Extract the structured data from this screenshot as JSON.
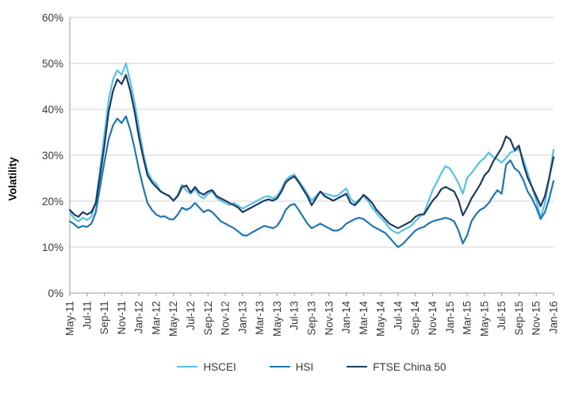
{
  "chart_data": {
    "type": "line",
    "title": "",
    "xlabel": "",
    "ylabel": "Volatility",
    "ylim": [
      0,
      60
    ],
    "y_tick_labels": [
      "0%",
      "10%",
      "20%",
      "30%",
      "40%",
      "50%",
      "60%"
    ],
    "y_tick_values": [
      0,
      10,
      20,
      30,
      40,
      50,
      60
    ],
    "grid": "horizontal",
    "legend_position": "bottom-center",
    "x_unit": "months since May-2011 (values sampled every 0.5 month)",
    "x_start": 0,
    "x_step": 0.5,
    "x_end": 56,
    "x_tick_step_months": 2,
    "x_tick_labels": [
      "May-11",
      "Jul-11",
      "Sep-11",
      "Nov-11",
      "Jan-12",
      "Mar-12",
      "May-12",
      "Jul-12",
      "Sep-12",
      "Nov-12",
      "Jan-13",
      "Mar-13",
      "May-13",
      "Jul-13",
      "Sep-13",
      "Nov-13",
      "Jan-14",
      "Mar-14",
      "May-14",
      "Jul-14",
      "Sep-14",
      "Nov-14",
      "Jan-15",
      "Mar-15",
      "May-15",
      "Jul-15",
      "Sep-15",
      "Nov-15",
      "Jan-16"
    ],
    "series": [
      {
        "name": "HSCEI",
        "color": "#58BFE8",
        "values": [
          17.5,
          16.3,
          15.6,
          16.4,
          15.9,
          16.6,
          19.5,
          27.0,
          34.5,
          42.0,
          46.5,
          48.5,
          47.5,
          50.0,
          46.0,
          41.5,
          36.0,
          30.5,
          26.5,
          24.6,
          23.8,
          22.2,
          21.6,
          21.2,
          20.1,
          21.4,
          23.6,
          22.3,
          21.6,
          22.6,
          21.2,
          20.6,
          21.6,
          22.1,
          20.7,
          20.1,
          19.6,
          19.1,
          19.6,
          19.0,
          18.4,
          18.9,
          19.4,
          19.9,
          20.4,
          20.9,
          21.1,
          20.6,
          21.1,
          22.6,
          24.6,
          25.4,
          25.8,
          24.4,
          23.1,
          21.6,
          20.1,
          21.1,
          22.1,
          21.6,
          21.4,
          21.1,
          21.2,
          22.0,
          22.8,
          20.6,
          19.6,
          20.4,
          21.1,
          20.1,
          18.6,
          17.4,
          16.4,
          15.4,
          14.1,
          13.4,
          13.0,
          13.6,
          14.1,
          14.6,
          15.6,
          16.6,
          17.4,
          19.9,
          22.4,
          24.1,
          26.1,
          27.6,
          27.1,
          25.6,
          23.9,
          21.6,
          25.1,
          26.1,
          27.4,
          28.6,
          29.4,
          30.6,
          29.6,
          29.1,
          28.4,
          29.4,
          30.6,
          30.9,
          31.4,
          29.1,
          26.1,
          23.1,
          20.1,
          16.4,
          19.6,
          25.1,
          31.2
        ]
      },
      {
        "name": "HSI",
        "color": "#1E76B4",
        "values": [
          15.6,
          15.0,
          14.2,
          14.6,
          14.4,
          15.1,
          17.5,
          23.0,
          28.5,
          33.5,
          36.5,
          38.0,
          37.0,
          38.5,
          35.5,
          31.5,
          27.0,
          23.0,
          19.6,
          18.1,
          17.1,
          16.6,
          16.7,
          16.1,
          16.0,
          17.1,
          18.6,
          18.1,
          18.6,
          19.6,
          18.6,
          17.6,
          18.1,
          17.6,
          16.6,
          15.6,
          15.1,
          14.6,
          14.1,
          13.4,
          12.6,
          12.5,
          13.1,
          13.6,
          14.1,
          14.6,
          14.4,
          14.1,
          14.6,
          16.1,
          18.1,
          19.1,
          19.4,
          18.1,
          16.6,
          15.1,
          14.1,
          14.6,
          15.1,
          14.6,
          14.1,
          13.6,
          13.6,
          14.1,
          15.1,
          15.6,
          16.1,
          16.4,
          16.1,
          15.4,
          14.6,
          14.1,
          13.6,
          13.1,
          12.1,
          11.0,
          10.0,
          10.6,
          11.6,
          12.6,
          13.6,
          14.1,
          14.4,
          15.1,
          15.6,
          15.9,
          16.1,
          16.4,
          16.1,
          15.6,
          13.6,
          10.8,
          12.6,
          15.6,
          17.1,
          18.1,
          18.6,
          19.6,
          21.1,
          22.4,
          21.6,
          27.9,
          28.9,
          27.1,
          26.4,
          24.6,
          22.1,
          20.6,
          18.6,
          16.1,
          17.6,
          20.6,
          24.4
        ]
      },
      {
        "name": "FTSE China 50",
        "color": "#1E3A5F",
        "values": [
          18.1,
          17.1,
          16.6,
          17.6,
          17.1,
          17.6,
          19.6,
          25.5,
          32.0,
          39.5,
          44.0,
          46.5,
          45.5,
          47.5,
          44.0,
          39.5,
          34.0,
          29.5,
          25.6,
          24.1,
          23.1,
          22.1,
          21.6,
          21.1,
          20.1,
          21.1,
          23.1,
          23.4,
          21.9,
          23.1,
          21.9,
          21.4,
          22.1,
          22.4,
          21.1,
          20.6,
          20.1,
          19.6,
          19.1,
          18.6,
          17.6,
          18.1,
          18.6,
          19.1,
          19.6,
          20.1,
          20.4,
          20.1,
          20.6,
          22.1,
          24.1,
          24.9,
          25.4,
          24.1,
          22.6,
          21.1,
          19.1,
          20.6,
          22.1,
          21.1,
          20.6,
          20.1,
          20.6,
          21.1,
          21.6,
          19.6,
          19.1,
          20.1,
          21.4,
          20.6,
          19.6,
          18.1,
          17.1,
          16.1,
          15.1,
          14.6,
          14.1,
          14.6,
          15.1,
          15.6,
          16.6,
          17.1,
          17.1,
          18.6,
          20.1,
          21.1,
          22.6,
          23.1,
          22.6,
          22.1,
          20.1,
          16.9,
          18.6,
          20.6,
          22.1,
          23.6,
          25.6,
          26.6,
          28.6,
          30.1,
          31.6,
          34.1,
          33.4,
          31.1,
          32.1,
          28.1,
          25.1,
          23.1,
          21.1,
          18.9,
          21.1,
          25.1,
          29.6
        ]
      }
    ]
  },
  "styles": {
    "background": "#FFFFFF",
    "grid_color": "#D2D2D2",
    "axis_color": "#9A9A9A",
    "tick_label_color": "#3A3A3A",
    "axis_title_color": "#000000"
  }
}
